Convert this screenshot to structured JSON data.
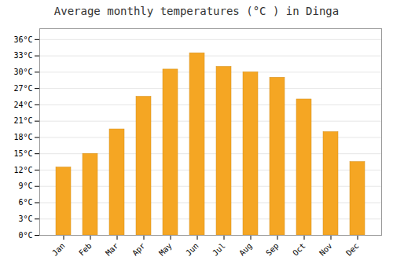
{
  "chart_data": {
    "type": "bar",
    "title": "Average monthly temperatures (°C ) in Dinga",
    "categories": [
      "Jan",
      "Feb",
      "Mar",
      "Apr",
      "May",
      "Jun",
      "Jul",
      "Aug",
      "Sep",
      "Oct",
      "Nov",
      "Dec"
    ],
    "values": [
      12.5,
      15.0,
      19.5,
      25.5,
      30.5,
      33.5,
      31.0,
      30.0,
      29.0,
      25.0,
      19.0,
      13.5
    ],
    "color": "#F5A623",
    "ylim": [
      0,
      38
    ],
    "yticks": [
      {
        "value": 0,
        "label": "0°C"
      },
      {
        "value": 3,
        "label": "3°C"
      },
      {
        "value": 6,
        "label": "6°C"
      },
      {
        "value": 9,
        "label": "9°C"
      },
      {
        "value": 12,
        "label": "12°C"
      },
      {
        "value": 15,
        "label": "15°C"
      },
      {
        "value": 18,
        "label": "18°C"
      },
      {
        "value": 21,
        "label": "21°C"
      },
      {
        "value": 24,
        "label": "24°C"
      },
      {
        "value": 27,
        "label": "27°C"
      },
      {
        "value": 30,
        "label": "30°C"
      },
      {
        "value": 33,
        "label": "33°C"
      },
      {
        "value": 36,
        "label": "36°C"
      }
    ],
    "grid": true
  }
}
